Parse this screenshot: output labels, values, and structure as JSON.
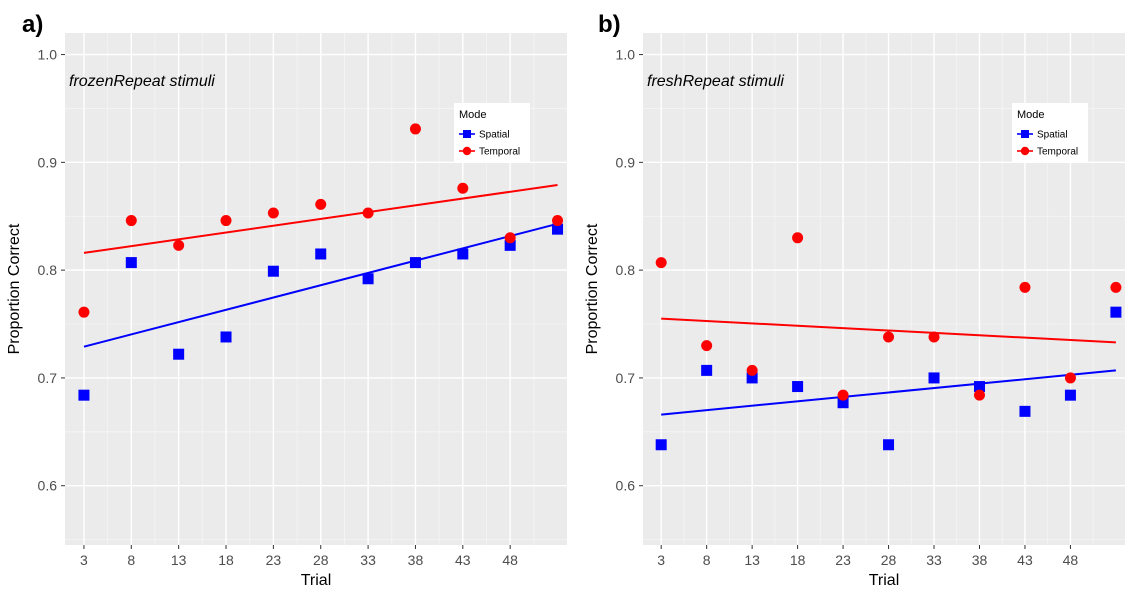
{
  "chart_data": [
    {
      "type": "scatter",
      "panel_label": "a)",
      "annotation": "frozenRepeat stimuli",
      "xlabel": "Trial",
      "ylabel": "Proportion Correct",
      "x_ticks": [
        3,
        8,
        13,
        18,
        23,
        28,
        33,
        38,
        43,
        48
      ],
      "y_ticks": [
        0.6,
        0.7,
        0.8,
        0.9,
        1.0
      ],
      "y_tick_labels": [
        "0.6",
        "0.7",
        "0.8",
        "0.9",
        "1.0"
      ],
      "xlim": [
        1,
        54
      ],
      "ylim": [
        0.545,
        1.02
      ],
      "grid": true,
      "legend_title": "Mode",
      "legend_position": "top-right",
      "series": [
        {
          "name": "Spatial",
          "color": "#0000ff",
          "marker": "square",
          "x": [
            3,
            8,
            13,
            18,
            23,
            28,
            33,
            38,
            43,
            48,
            53
          ],
          "y": [
            0.684,
            0.807,
            0.722,
            0.738,
            0.799,
            0.815,
            0.792,
            0.807,
            0.815,
            0.823,
            0.838
          ],
          "fit": {
            "x": [
              3,
              53
            ],
            "y": [
              0.729,
              0.843
            ]
          }
        },
        {
          "name": "Temporal",
          "color": "#ff0000",
          "marker": "circle",
          "x": [
            3,
            8,
            13,
            18,
            23,
            28,
            33,
            38,
            43,
            48,
            53
          ],
          "y": [
            0.761,
            0.846,
            0.823,
            0.846,
            0.853,
            0.861,
            0.853,
            0.931,
            0.876,
            0.83,
            0.846
          ],
          "fit": {
            "x": [
              3,
              53
            ],
            "y": [
              0.816,
              0.879
            ]
          }
        }
      ]
    },
    {
      "type": "scatter",
      "panel_label": "b)",
      "annotation": "freshRepeat stimuli",
      "xlabel": "Trial",
      "ylabel": "Proportion Correct",
      "x_ticks": [
        3,
        8,
        13,
        18,
        23,
        28,
        33,
        38,
        43,
        48
      ],
      "y_ticks": [
        0.6,
        0.7,
        0.8,
        0.9,
        1.0
      ],
      "y_tick_labels": [
        "0.6",
        "0.7",
        "0.8",
        "0.9",
        "1.0"
      ],
      "xlim": [
        1,
        54
      ],
      "ylim": [
        0.545,
        1.02
      ],
      "grid": true,
      "legend_title": "Mode",
      "legend_position": "top-right",
      "series": [
        {
          "name": "Spatial",
          "color": "#0000ff",
          "marker": "square",
          "x": [
            3,
            8,
            13,
            18,
            23,
            28,
            33,
            38,
            43,
            48,
            53
          ],
          "y": [
            0.638,
            0.707,
            0.7,
            0.692,
            0.677,
            0.638,
            0.7,
            0.692,
            0.669,
            0.684,
            0.761
          ],
          "fit": {
            "x": [
              3,
              53
            ],
            "y": [
              0.666,
              0.707
            ]
          }
        },
        {
          "name": "Temporal",
          "color": "#ff0000",
          "marker": "circle",
          "x": [
            3,
            8,
            13,
            18,
            23,
            28,
            33,
            38,
            43,
            48,
            53
          ],
          "y": [
            0.807,
            0.73,
            0.707,
            0.83,
            0.684,
            0.738,
            0.738,
            0.684,
            0.784,
            0.7,
            0.784
          ],
          "fit": {
            "x": [
              3,
              53
            ],
            "y": [
              0.755,
              0.733
            ]
          }
        }
      ]
    }
  ]
}
